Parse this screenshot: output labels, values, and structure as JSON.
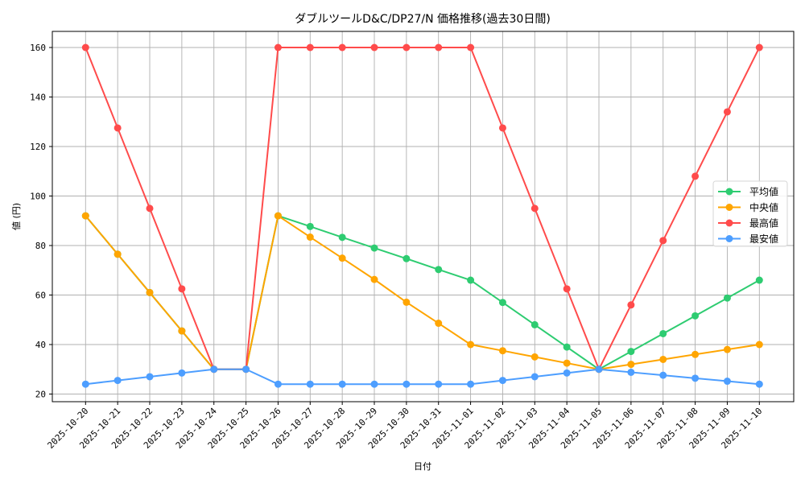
{
  "chart_data": {
    "type": "line",
    "title": "ダブルツールD&C/DP27/N 価格推移(過去30日間)",
    "xlabel": "日付",
    "ylabel": "値 (円)",
    "ylim": [
      17,
      166.5
    ],
    "yticks": [
      20,
      40,
      60,
      80,
      100,
      120,
      140,
      160
    ],
    "grid": true,
    "legend_position": "center right",
    "x": [
      "2025-10-20",
      "2025-10-21",
      "2025-10-22",
      "2025-10-23",
      "2025-10-24",
      "2025-10-25",
      "2025-10-26",
      "2025-10-27",
      "2025-10-28",
      "2025-10-29",
      "2025-10-30",
      "2025-10-31",
      "2025-11-01",
      "2025-11-02",
      "2025-11-03",
      "2025-11-04",
      "2025-11-05",
      "2025-11-06",
      "2025-11-07",
      "2025-11-08",
      "2025-11-09",
      "2025-11-10"
    ],
    "series": [
      {
        "name": "平均値",
        "color": "#2ECC71",
        "values": [
          92,
          76.5,
          61,
          45.5,
          30,
          30,
          92,
          87.7,
          83.3,
          79,
          74.7,
          70.3,
          66,
          57,
          48,
          39,
          30,
          37.2,
          44.4,
          51.6,
          58.8,
          66
        ]
      },
      {
        "name": "中央値",
        "color": "#FFA500",
        "values": [
          92,
          76.5,
          61,
          45.5,
          30,
          30,
          92,
          83.4,
          74.9,
          66.3,
          57.1,
          48.6,
          40,
          37.5,
          35,
          32.5,
          30,
          32,
          34,
          36,
          38,
          40
        ]
      },
      {
        "name": "最高値",
        "color": "#FF4B4B",
        "values": [
          160,
          127.5,
          95,
          62.5,
          30,
          30,
          160,
          160,
          160,
          160,
          160,
          160,
          160,
          127.5,
          95,
          62.5,
          30,
          56,
          82,
          108,
          134,
          160
        ]
      },
      {
        "name": "最安値",
        "color": "#4D9EFF",
        "values": [
          24,
          25.5,
          27,
          28.5,
          30,
          30,
          24,
          24,
          24,
          24,
          24,
          24,
          24,
          25.5,
          27,
          28.5,
          30,
          28.8,
          27.6,
          26.4,
          25.2,
          24
        ]
      }
    ]
  }
}
